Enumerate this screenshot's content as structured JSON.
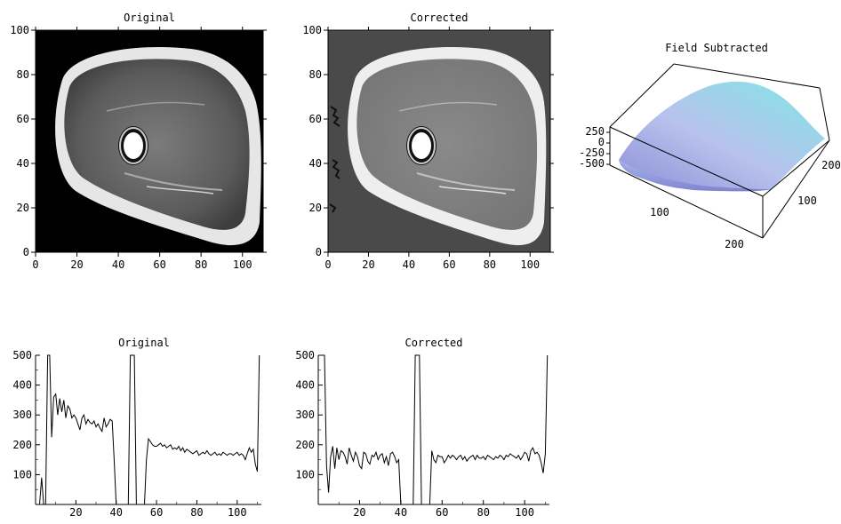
{
  "chart_data": [
    {
      "type": "image",
      "title": "Original",
      "xlim": [
        0,
        110
      ],
      "ylim": [
        0,
        100
      ],
      "xticks": [
        "0",
        "20",
        "40",
        "60",
        "80",
        "100"
      ],
      "yticks": [
        "0",
        "20",
        "40",
        "60",
        "80",
        "100"
      ],
      "background": "#000000"
    },
    {
      "type": "image",
      "title": "Corrected",
      "xlim": [
        0,
        110
      ],
      "ylim": [
        0,
        100
      ],
      "xticks": [
        "0",
        "20",
        "40",
        "60",
        "80",
        "100"
      ],
      "yticks": [
        "0",
        "20",
        "40",
        "60",
        "80",
        "100"
      ],
      "background": "#4a4a4a"
    },
    {
      "type": "surface",
      "title": "Field Subtracted",
      "zticks": [
        "250",
        "0",
        "-250",
        "-500"
      ],
      "xticks": [
        "100",
        "200"
      ],
      "yticks": [
        "100",
        "200"
      ]
    },
    {
      "type": "line",
      "title": "Original",
      "xlim": [
        0,
        112
      ],
      "ylim": [
        0,
        500
      ],
      "xticks": [
        "20",
        "40",
        "60",
        "80",
        "100"
      ],
      "yticks": [
        "100",
        "200",
        "300",
        "400",
        "500"
      ],
      "x": [
        1,
        2,
        3,
        4,
        5,
        6,
        7,
        8,
        9,
        10,
        11,
        12,
        13,
        14,
        15,
        16,
        17,
        18,
        19,
        20,
        21,
        22,
        23,
        24,
        25,
        26,
        27,
        28,
        29,
        30,
        31,
        32,
        33,
        34,
        35,
        36,
        37,
        38,
        39,
        40,
        41,
        42,
        43,
        44,
        45,
        46,
        47,
        48,
        49,
        50,
        51,
        52,
        53,
        54,
        55,
        56,
        57,
        58,
        59,
        60,
        61,
        62,
        63,
        64,
        65,
        66,
        67,
        68,
        69,
        70,
        71,
        72,
        73,
        74,
        75,
        76,
        77,
        78,
        79,
        80,
        81,
        82,
        83,
        84,
        85,
        86,
        87,
        88,
        89,
        90,
        91,
        92,
        93,
        94,
        95,
        96,
        97,
        98,
        99,
        100,
        101,
        102,
        103,
        104,
        105,
        106,
        107,
        108,
        109,
        110,
        111
      ],
      "y": [
        0,
        0,
        90,
        0,
        0,
        500,
        500,
        225,
        360,
        370,
        300,
        355,
        310,
        350,
        290,
        330,
        320,
        290,
        300,
        290,
        270,
        250,
        290,
        300,
        270,
        285,
        275,
        270,
        280,
        260,
        270,
        255,
        245,
        290,
        260,
        270,
        285,
        280,
        150,
        0,
        0,
        0,
        0,
        0,
        0,
        0,
        500,
        500,
        500,
        0,
        0,
        0,
        0,
        0,
        150,
        220,
        210,
        200,
        195,
        195,
        200,
        205,
        195,
        200,
        190,
        195,
        200,
        185,
        190,
        185,
        195,
        180,
        190,
        175,
        185,
        180,
        175,
        170,
        175,
        180,
        165,
        170,
        175,
        170,
        180,
        170,
        165,
        170,
        175,
        165,
        170,
        165,
        175,
        170,
        165,
        170,
        170,
        165,
        170,
        175,
        165,
        170,
        165,
        150,
        170,
        190,
        175,
        185,
        135,
        110,
        500
      ],
      "series_color": "#000000"
    },
    {
      "type": "line",
      "title": "Corrected",
      "xlim": [
        0,
        112
      ],
      "ylim": [
        0,
        500
      ],
      "xticks": [
        "20",
        "40",
        "60",
        "80",
        "100"
      ],
      "yticks": [
        "100",
        "200",
        "300",
        "400",
        "500"
      ],
      "x": [
        1,
        2,
        3,
        4,
        5,
        6,
        7,
        8,
        9,
        10,
        11,
        12,
        13,
        14,
        15,
        16,
        17,
        18,
        19,
        20,
        21,
        22,
        23,
        24,
        25,
        26,
        27,
        28,
        29,
        30,
        31,
        32,
        33,
        34,
        35,
        36,
        37,
        38,
        39,
        40,
        41,
        42,
        43,
        44,
        45,
        46,
        47,
        48,
        49,
        50,
        51,
        52,
        53,
        54,
        55,
        56,
        57,
        58,
        59,
        60,
        61,
        62,
        63,
        64,
        65,
        66,
        67,
        68,
        69,
        70,
        71,
        72,
        73,
        74,
        75,
        76,
        77,
        78,
        79,
        80,
        81,
        82,
        83,
        84,
        85,
        86,
        87,
        88,
        89,
        90,
        91,
        92,
        93,
        94,
        95,
        96,
        97,
        98,
        99,
        100,
        101,
        102,
        103,
        104,
        105,
        106,
        107,
        108,
        109,
        110,
        111
      ],
      "y": [
        500,
        500,
        500,
        130,
        40,
        160,
        195,
        120,
        190,
        150,
        180,
        175,
        160,
        135,
        190,
        165,
        145,
        175,
        160,
        130,
        120,
        175,
        170,
        145,
        135,
        165,
        160,
        175,
        150,
        165,
        170,
        140,
        160,
        130,
        170,
        175,
        160,
        140,
        150,
        0,
        0,
        0,
        0,
        0,
        0,
        0,
        500,
        500,
        500,
        0,
        0,
        0,
        0,
        0,
        180,
        150,
        140,
        165,
        160,
        160,
        140,
        150,
        165,
        155,
        165,
        160,
        150,
        160,
        165,
        150,
        160,
        145,
        155,
        160,
        165,
        150,
        165,
        155,
        155,
        160,
        150,
        165,
        160,
        155,
        150,
        160,
        155,
        165,
        160,
        150,
        165,
        160,
        170,
        165,
        160,
        155,
        165,
        150,
        160,
        175,
        170,
        145,
        180,
        190,
        170,
        175,
        165,
        140,
        105,
        170,
        500
      ],
      "series_color": "#000000"
    }
  ]
}
